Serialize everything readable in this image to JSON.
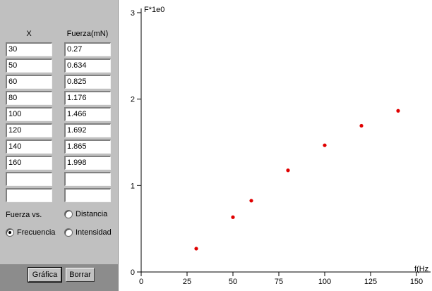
{
  "panel": {
    "col_x_label": "X",
    "col_f_label": "Fuerza(mN)",
    "rows": [
      {
        "x": "30",
        "f": "0.27"
      },
      {
        "x": "50",
        "f": "0.634"
      },
      {
        "x": "60",
        "f": "0.825"
      },
      {
        "x": "80",
        "f": "1.176"
      },
      {
        "x": "100",
        "f": "1.466"
      },
      {
        "x": "120",
        "f": "1.692"
      },
      {
        "x": "140",
        "f": "1.865"
      },
      {
        "x": "160",
        "f": "1.998"
      },
      {
        "x": "",
        "f": ""
      },
      {
        "x": "",
        "f": ""
      }
    ],
    "fuerza_vs_label": "Fuerza vs.",
    "options": {
      "distancia": {
        "label": "Distancia",
        "selected": false
      },
      "frecuencia": {
        "label": "Frecuencia",
        "selected": true
      },
      "intensidad": {
        "label": "Intensidad",
        "selected": false
      }
    },
    "buttons": {
      "grafica": "Gráfica",
      "borrar": "Borrar"
    }
  },
  "chart_data": {
    "type": "scatter",
    "ylabel": "F*1e0",
    "xlabel": "f(Hz",
    "xlim": [
      0,
      150
    ],
    "ylim": [
      0,
      3
    ],
    "xticks": [
      0,
      25,
      50,
      75,
      100,
      125,
      150
    ],
    "yticks": [
      0,
      1,
      2,
      3
    ],
    "grid": false,
    "point_color": "#e00000",
    "x": [
      30,
      50,
      60,
      80,
      100,
      120,
      140
    ],
    "y": [
      0.27,
      0.634,
      0.825,
      1.176,
      1.466,
      1.692,
      1.865
    ]
  }
}
